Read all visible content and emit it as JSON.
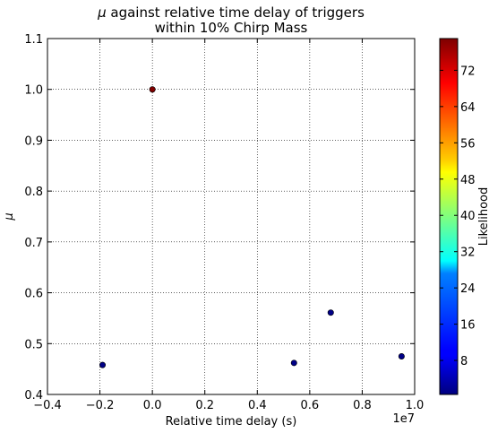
{
  "chart_data": {
    "type": "scatter",
    "title": [
      "μ against relative time delay of triggers",
      "within 10% Chirp Mass"
    ],
    "xlabel": "Relative time delay (s)",
    "ylabel": "μ",
    "x_offset_label": "1e7",
    "xlim": [
      -0.4,
      1.0
    ],
    "ylim": [
      0.4,
      1.1
    ],
    "x_scale_factor": 10000000,
    "xticks": [
      -0.4,
      -0.2,
      0.0,
      0.2,
      0.4,
      0.6,
      0.8,
      1.0
    ],
    "xtick_labels": [
      "−0.4",
      "−0.2",
      "0.0",
      "0.2",
      "0.4",
      "0.6",
      "0.8",
      "1.0"
    ],
    "yticks": [
      0.4,
      0.5,
      0.6,
      0.7,
      0.8,
      0.9,
      1.0,
      1.1
    ],
    "ytick_labels": [
      "0.4",
      "0.5",
      "0.6",
      "0.7",
      "0.8",
      "0.9",
      "1.0",
      "1.1"
    ],
    "grid": true,
    "points": [
      {
        "x": 0.0,
        "y": 1.0,
        "likelihood": 79
      },
      {
        "x": -0.19,
        "y": 0.458,
        "likelihood": 1
      },
      {
        "x": 0.54,
        "y": 0.462,
        "likelihood": 1
      },
      {
        "x": 0.68,
        "y": 0.561,
        "likelihood": 1
      },
      {
        "x": 0.95,
        "y": 0.475,
        "likelihood": 1
      }
    ],
    "colorbar": {
      "label": "Likelihood",
      "colormap": "jet",
      "range": [
        0.5,
        79
      ],
      "ticks": [
        8,
        16,
        24,
        32,
        40,
        48,
        56,
        64,
        72
      ],
      "tick_labels": [
        "8",
        "16",
        "24",
        "32",
        "40",
        "48",
        "56",
        "64",
        "72"
      ]
    }
  }
}
